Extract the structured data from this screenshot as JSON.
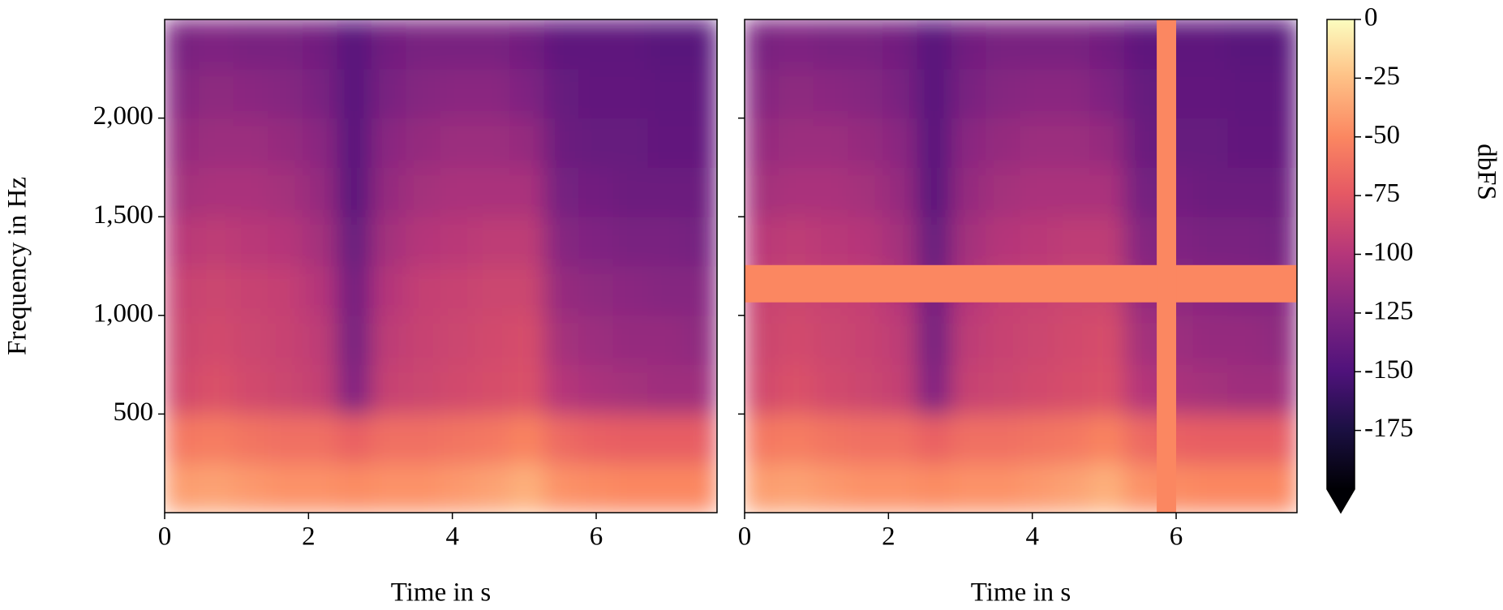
{
  "chart_data": [
    {
      "type": "heatmap",
      "xlabel": "Time in s",
      "ylabel": "Frequency in Hz",
      "x": [
        0,
        0.48,
        0.96,
        1.44,
        1.92,
        2.4,
        2.88,
        3.36,
        3.84,
        4.32,
        4.8,
        5.28,
        5.76,
        6.24,
        6.72,
        7.2,
        7.68
      ],
      "y": [
        0,
        250,
        500,
        750,
        1000,
        1250,
        1500,
        1750,
        2000,
        2250,
        2500
      ],
      "z": [
        [
          -40,
          -38,
          -42,
          -45,
          -45,
          -48,
          -45,
          -45,
          -42,
          -38,
          -32,
          -45,
          -48,
          -50,
          -50,
          -50
        ],
        [
          -58,
          -55,
          -60,
          -62,
          -62,
          -70,
          -62,
          -62,
          -60,
          -58,
          -52,
          -65,
          -70,
          -72,
          -72,
          -72
        ],
        [
          -85,
          -80,
          -85,
          -88,
          -92,
          -125,
          -90,
          -88,
          -85,
          -82,
          -80,
          -100,
          -105,
          -108,
          -110,
          -110
        ],
        [
          -88,
          -85,
          -88,
          -90,
          -95,
          -130,
          -95,
          -90,
          -88,
          -85,
          -82,
          -108,
          -112,
          -115,
          -115,
          -118
        ],
        [
          -90,
          -88,
          -90,
          -92,
          -100,
          -132,
          -100,
          -92,
          -90,
          -88,
          -88,
          -115,
          -118,
          -120,
          -122,
          -122
        ],
        [
          -98,
          -95,
          -98,
          -100,
          -108,
          -138,
          -108,
          -100,
          -98,
          -95,
          -95,
          -122,
          -125,
          -128,
          -128,
          -130
        ],
        [
          -108,
          -105,
          -105,
          -108,
          -115,
          -145,
          -115,
          -108,
          -105,
          -105,
          -105,
          -130,
          -132,
          -135,
          -135,
          -135
        ],
        [
          -115,
          -112,
          -112,
          -115,
          -120,
          -145,
          -120,
          -115,
          -112,
          -112,
          -115,
          -135,
          -138,
          -138,
          -140,
          -140
        ],
        [
          -122,
          -118,
          -120,
          -122,
          -128,
          -145,
          -128,
          -122,
          -120,
          -120,
          -125,
          -138,
          -140,
          -140,
          -142,
          -142
        ],
        [
          -128,
          -125,
          -128,
          -128,
          -132,
          -145,
          -132,
          -128,
          -128,
          -128,
          -132,
          -142,
          -142,
          -142,
          -145,
          -145
        ]
      ],
      "xlim": [
        0,
        7.68
      ],
      "ylim": [
        0,
        2500
      ],
      "xticks": [
        0,
        2,
        4,
        6
      ],
      "yticks": [
        500,
        {
          "value": 1000,
          "label": "1,000"
        },
        {
          "value": 1500,
          "label": "1,500"
        },
        {
          "value": 2000,
          "label": "2,000"
        }
      ],
      "show_yticklabels": true
    },
    {
      "type": "heatmap",
      "xlabel": "Time in s",
      "x": [
        0,
        0.48,
        0.96,
        1.44,
        1.92,
        2.4,
        2.88,
        3.36,
        3.84,
        4.32,
        4.8,
        5.28,
        5.76,
        6.24,
        6.72,
        7.2,
        7.68
      ],
      "y": [
        0,
        250,
        500,
        750,
        1000,
        1250,
        1500,
        1750,
        2000,
        2250,
        2500
      ],
      "z": [
        [
          -40,
          -38,
          -42,
          -45,
          -45,
          -48,
          -45,
          -45,
          -42,
          -38,
          -32,
          -45,
          -48,
          -50,
          -50,
          -50
        ],
        [
          -58,
          -55,
          -60,
          -62,
          -62,
          -70,
          -62,
          -62,
          -60,
          -58,
          -52,
          -65,
          -70,
          -72,
          -72,
          -72
        ],
        [
          -85,
          -80,
          -85,
          -88,
          -92,
          -125,
          -90,
          -88,
          -85,
          -82,
          -80,
          -100,
          -105,
          -108,
          -110,
          -110
        ],
        [
          -88,
          -85,
          -88,
          -90,
          -95,
          -130,
          -95,
          -90,
          -88,
          -85,
          -82,
          -108,
          -112,
          -115,
          -115,
          -118
        ],
        [
          -90,
          -88,
          -90,
          -92,
          -100,
          -132,
          -100,
          -92,
          -90,
          -88,
          -88,
          -115,
          -118,
          -120,
          -122,
          -122
        ],
        [
          -98,
          -95,
          -98,
          -100,
          -108,
          -138,
          -108,
          -100,
          -98,
          -95,
          -95,
          -122,
          -125,
          -128,
          -128,
          -130
        ],
        [
          -108,
          -105,
          -105,
          -108,
          -115,
          -145,
          -115,
          -108,
          -105,
          -105,
          -105,
          -130,
          -132,
          -135,
          -135,
          -135
        ],
        [
          -115,
          -112,
          -112,
          -115,
          -120,
          -145,
          -120,
          -115,
          -112,
          -112,
          -115,
          -135,
          -138,
          -138,
          -140,
          -140
        ],
        [
          -122,
          -118,
          -120,
          -122,
          -128,
          -145,
          -128,
          -122,
          -120,
          -120,
          -125,
          -138,
          -140,
          -140,
          -142,
          -142
        ],
        [
          -128,
          -125,
          -128,
          -128,
          -132,
          -145,
          -132,
          -128,
          -128,
          -128,
          -132,
          -142,
          -142,
          -142,
          -145,
          -145
        ]
      ],
      "xlim": [
        0,
        7.68
      ],
      "ylim": [
        0,
        2500
      ],
      "xticks": [
        0,
        2,
        4,
        6
      ],
      "yticks": [
        500,
        1000,
        1500,
        2000
      ],
      "show_yticklabels": false,
      "mask_value": -50,
      "time_masks": [
        [
          5.73,
          6.0
        ]
      ],
      "frequency_masks": [
        [
          1066,
          1255
        ]
      ]
    },
    {
      "type": "colorbar",
      "label": "dbFS",
      "colormap": "magma",
      "clim": [
        -200,
        0
      ],
      "cticks": [
        0,
        -25,
        -50,
        -75,
        -100,
        -125,
        -150,
        -175
      ],
      "extend": "min"
    }
  ]
}
